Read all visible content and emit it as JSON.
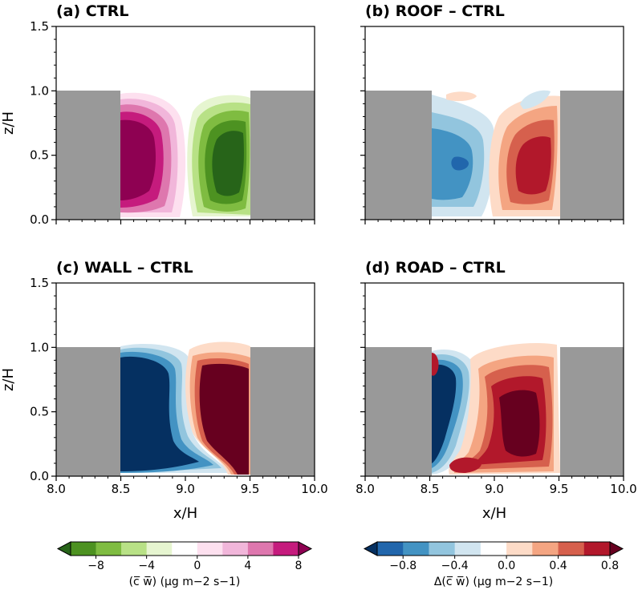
{
  "chart_data": [
    {
      "type": "contour",
      "title": "(a) CTRL",
      "xlabel": "",
      "ylabel": "z/H",
      "xlim": [
        8.0,
        10.0
      ],
      "ylim": [
        0.0,
        1.5
      ],
      "y_ticks": [
        "0.0",
        "0.5",
        "1.0",
        "1.5"
      ],
      "x_ticks": [],
      "buildings": [
        {
          "x": [
            8.0,
            8.5
          ],
          "top": 1.0
        },
        {
          "x": [
            9.5,
            10.0
          ],
          "top": 1.0
        }
      ],
      "colormap": "green-white-magenta",
      "features": [
        {
          "label": "positive flux, magenta",
          "center": [
            8.65,
            0.48
          ],
          "sign": 1
        },
        {
          "label": "negative flux, green",
          "center": [
            9.27,
            0.47
          ],
          "sign": -1
        }
      ]
    },
    {
      "type": "contour",
      "title": "(b) ROOF – CTRL",
      "xlabel": "",
      "ylabel": "",
      "xlim": [
        8.0,
        10.0
      ],
      "ylim": [
        0.0,
        1.5
      ],
      "y_ticks": [],
      "x_ticks": [],
      "buildings": [
        {
          "x": [
            8.0,
            8.5
          ],
          "top": 1.0
        },
        {
          "x": [
            9.5,
            10.0
          ],
          "top": 1.0
        }
      ],
      "colormap": "blue-white-red",
      "features": [
        {
          "label": "negative diff, blue",
          "center": [
            8.72,
            0.45
          ],
          "sign": -1
        },
        {
          "label": "positive diff, red",
          "center": [
            9.3,
            0.45
          ],
          "sign": 1
        }
      ]
    },
    {
      "type": "contour",
      "title": "(c) WALL – CTRL",
      "xlabel": "x/H",
      "ylabel": "z/H",
      "xlim": [
        8.0,
        10.0
      ],
      "ylim": [
        0.0,
        1.5
      ],
      "y_ticks": [
        "0.0",
        "0.5",
        "1.0",
        "1.5"
      ],
      "x_ticks": [
        "8.0",
        "8.5",
        "9.0",
        "9.5",
        "10.0"
      ],
      "buildings": [
        {
          "x": [
            8.0,
            8.5
          ],
          "top": 1.0
        },
        {
          "x": [
            9.5,
            10.0
          ],
          "top": 1.0
        }
      ],
      "colormap": "blue-white-red",
      "features": [
        {
          "label": "negative diff, dark blue",
          "center": [
            8.7,
            0.45
          ],
          "sign": -1
        },
        {
          "label": "positive diff, dark red",
          "center": [
            9.3,
            0.55
          ],
          "sign": 1
        }
      ]
    },
    {
      "type": "contour",
      "title": "(d) ROAD – CTRL",
      "xlabel": "x/H",
      "ylabel": "",
      "xlim": [
        8.0,
        10.0
      ],
      "ylim": [
        0.0,
        1.5
      ],
      "y_ticks": [],
      "x_ticks": [
        "8.0",
        "8.5",
        "9.0",
        "9.5",
        "10.0"
      ],
      "buildings": [
        {
          "x": [
            8.0,
            8.5
          ],
          "top": 1.0
        },
        {
          "x": [
            9.5,
            10.0
          ],
          "top": 1.0
        }
      ],
      "colormap": "blue-white-red",
      "features": [
        {
          "label": "negative diff, dark blue",
          "center": [
            8.6,
            0.5
          ],
          "sign": -1
        },
        {
          "label": "positive diff, dark red",
          "center": [
            9.2,
            0.55
          ],
          "sign": 1
        }
      ]
    }
  ],
  "colorbars": [
    {
      "name": "ctrl",
      "colors": [
        "#276419",
        "#4d9221",
        "#7fbc41",
        "#b8e186",
        "#e6f5d0",
        "#ffffff",
        "#fde0ef",
        "#f1b6da",
        "#de77ae",
        "#c51b7d",
        "#8e0152"
      ],
      "ticks": [
        "−8",
        "−4",
        "0",
        "4",
        "8"
      ],
      "label": "(c̅ w̅) (µg m−2 s−1)"
    },
    {
      "name": "diff",
      "colors": [
        "#053061",
        "#2166ac",
        "#4393c3",
        "#92c5de",
        "#d1e5f0",
        "#ffffff",
        "#fddbc7",
        "#f4a582",
        "#d6604d",
        "#b2182b",
        "#67001f"
      ],
      "ticks": [
        "−0.8",
        "−0.4",
        "0.0",
        "0.4",
        "0.8"
      ],
      "label": "Δ(c̅ w̅) (µg m−2 s−1)"
    }
  ]
}
